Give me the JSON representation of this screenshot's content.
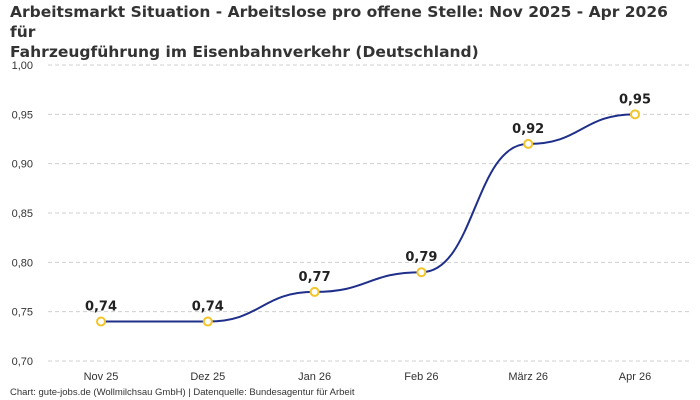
{
  "chart_data": {
    "type": "line",
    "title_lines": [
      "Arbeitsmarkt Situation - Arbeitslose pro offene Stelle: Nov 2025 - Apr 2026 für",
      "Fahrzeugführung im Eisenbahnverkehr (Deutschland)"
    ],
    "categories": [
      "Nov 25",
      "Dez 25",
      "Jan 26",
      "Feb 26",
      "März 26",
      "Apr 26"
    ],
    "values": [
      0.74,
      0.74,
      0.77,
      0.79,
      0.92,
      0.95
    ],
    "data_labels": [
      "0,74",
      "0,74",
      "0,77",
      "0,79",
      "0,92",
      "0,95"
    ],
    "y_ticks": [
      0.7,
      0.75,
      0.8,
      0.85,
      0.9,
      0.95,
      1.0
    ],
    "y_tick_labels": [
      "0,70",
      "0,75",
      "0,80",
      "0,85",
      "0,90",
      "0,95",
      "1,00"
    ],
    "ylim": [
      0.7,
      1.0
    ],
    "grid": true,
    "line_color": "#1f2f8a",
    "marker_color": "#f2c52b",
    "caption": "Chart: gute-jobs.de (Wollmilchsau GmbH) | Datenquelle: Bundesagentur für Arbeit"
  }
}
